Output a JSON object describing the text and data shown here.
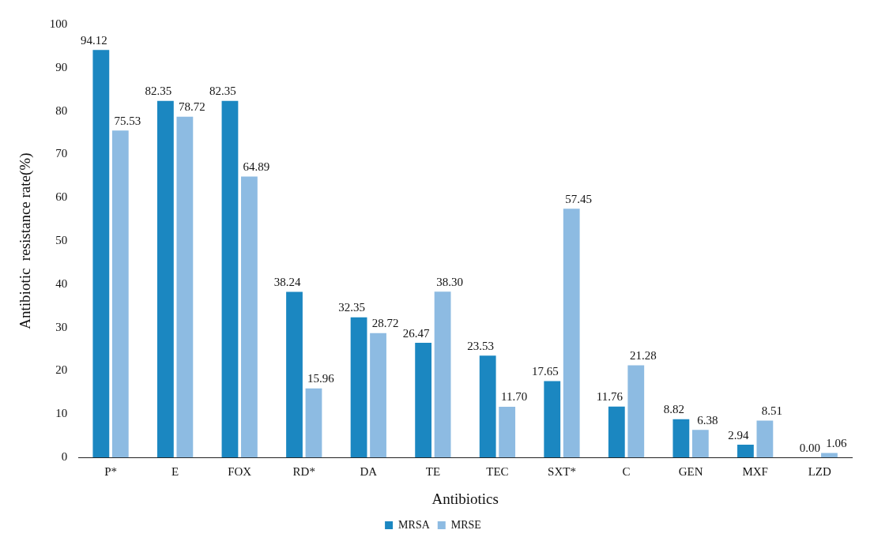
{
  "chart_data": {
    "type": "bar",
    "xlabel": "Antibiotics",
    "ylabel": "Antibiotic  resistance rate(%)",
    "categories": [
      "P*",
      "E",
      "FOX",
      "RD*",
      "DA",
      "TE",
      "TEC",
      "SXT*",
      "C",
      "GEN",
      "MXF",
      "LZD"
    ],
    "series": [
      {
        "name": "MRSA",
        "color": "#1b87c1",
        "values": [
          94.12,
          82.35,
          82.35,
          38.24,
          32.35,
          26.47,
          23.53,
          17.65,
          11.76,
          8.82,
          2.94,
          0.0
        ],
        "value_labels": [
          "94.12",
          "82.35",
          "82.35",
          "38.24",
          "32.35",
          "26.47",
          "23.53",
          "17.65",
          "11.76",
          "8.82",
          "2.94",
          "0.00"
        ]
      },
      {
        "name": "MRSE",
        "color": "#8dbbe2",
        "values": [
          75.53,
          78.72,
          64.89,
          15.96,
          28.72,
          38.3,
          11.7,
          57.45,
          21.28,
          6.38,
          8.51,
          1.06
        ],
        "value_labels": [
          "75.53",
          "78.72",
          "64.89",
          "15.96",
          "28.72",
          "38.30",
          "11.70",
          "57.45",
          "21.28",
          "6.38",
          "8.51",
          "1.06"
        ]
      }
    ],
    "ylim": [
      0,
      100
    ],
    "yticks": [
      0,
      10,
      20,
      30,
      40,
      50,
      60,
      70,
      80,
      90,
      100
    ],
    "grid": false,
    "legend": "bottom"
  }
}
